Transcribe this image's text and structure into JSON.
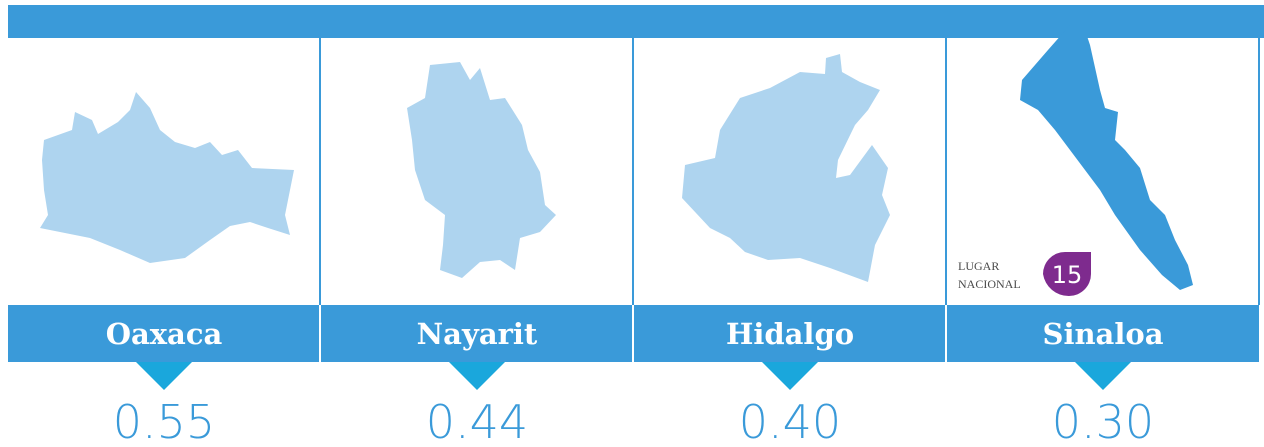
{
  "panels": [
    {
      "name": "Oaxaca",
      "value": "0.55"
    },
    {
      "name": "Nayarit",
      "value": "0.44"
    },
    {
      "name": "Hidalgo",
      "value": "0.40"
    },
    {
      "name": "Sinaloa",
      "value": "0.30",
      "badge": {
        "line1": "LUGAR",
        "line2": "NACIONAL",
        "rank": "15"
      }
    }
  ]
}
